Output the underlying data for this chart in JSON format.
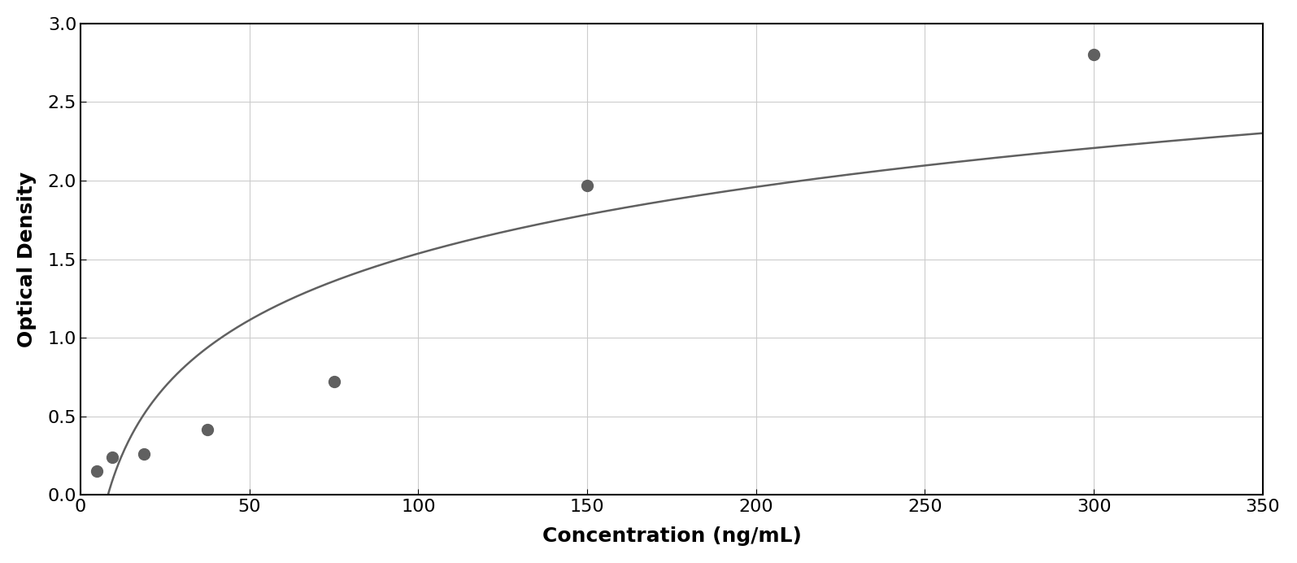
{
  "x_data": [
    4.69,
    9.38,
    18.75,
    37.5,
    75.0,
    150.0,
    300.0
  ],
  "y_data": [
    0.154,
    0.238,
    0.262,
    0.415,
    0.72,
    1.97,
    2.8
  ],
  "xlabel": "Concentration (ng/mL)",
  "ylabel": "Optical Density",
  "xlim": [
    0,
    350
  ],
  "ylim": [
    0,
    3.0
  ],
  "xticks": [
    0,
    50,
    100,
    150,
    200,
    250,
    300,
    350
  ],
  "yticks": [
    0,
    0.5,
    1.0,
    1.5,
    2.0,
    2.5,
    3.0
  ],
  "data_color": "#606060",
  "line_color": "#606060",
  "background_color": "#ffffff",
  "plot_background": "#ffffff",
  "grid_color": "#cccccc",
  "marker_size": 10,
  "line_width": 1.8,
  "xlabel_fontsize": 18,
  "ylabel_fontsize": 18,
  "tick_fontsize": 16,
  "xlabel_fontweight": "bold",
  "ylabel_fontweight": "bold"
}
